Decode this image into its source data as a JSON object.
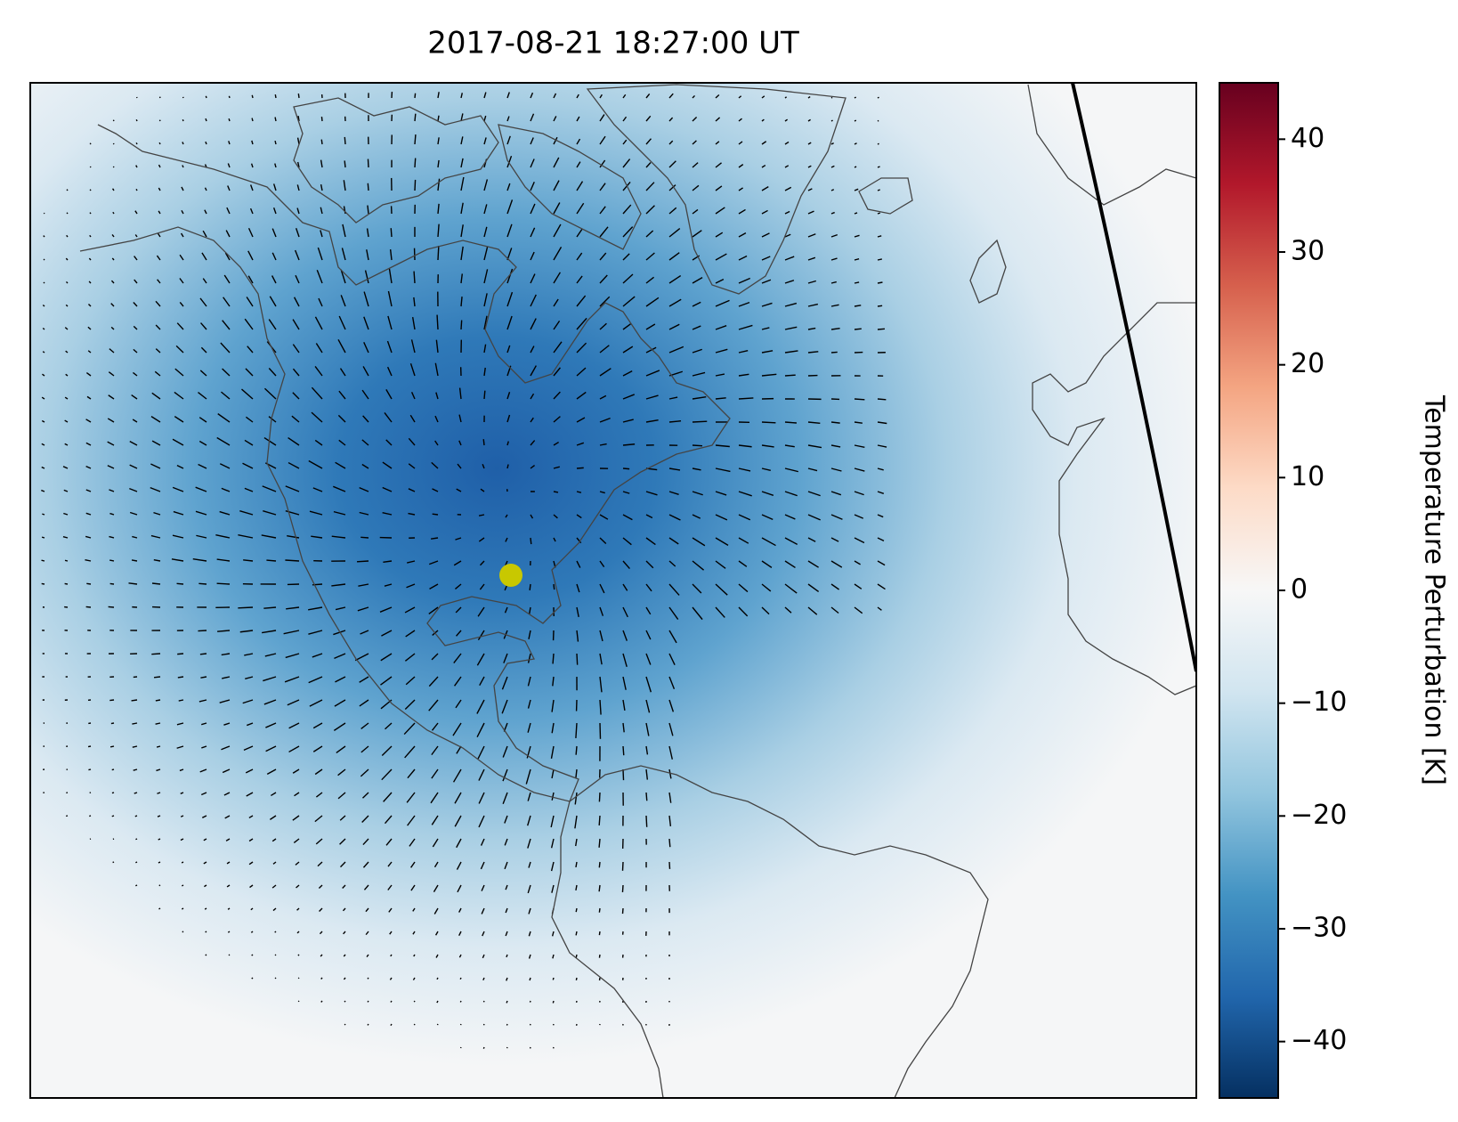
{
  "map": {
    "title": "2017-08-21 18:27:00 UT",
    "colorbar": {
      "label": "Temperature Perturbation [K]",
      "lim": [
        -45,
        45
      ],
      "ticks": [
        {
          "value": -40,
          "label": "−40"
        },
        {
          "value": -30,
          "label": "−30"
        },
        {
          "value": -20,
          "label": "−20"
        },
        {
          "value": -10,
          "label": "−10"
        },
        0,
        10,
        20,
        30,
        40
      ],
      "colormap": [
        "#053061",
        "#2166ac",
        "#4393c3",
        "#92c5de",
        "#d1e5f0",
        "#f7f7f7",
        "#fddbc7",
        "#f4a582",
        "#d6604d",
        "#b2182b",
        "#67001f"
      ]
    }
  }
}
